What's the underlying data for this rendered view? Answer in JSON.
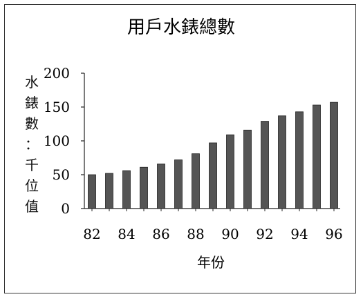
{
  "chart_data": {
    "type": "bar",
    "title": "用戶水錶總數",
    "xlabel": "年份",
    "ylabel": "水錶數：千位值",
    "ylabel_chars": [
      "水",
      "錶",
      "數",
      "：",
      "千",
      "位",
      "值"
    ],
    "categories": [
      "82",
      "83",
      "84",
      "85",
      "86",
      "87",
      "88",
      "89",
      "90",
      "91",
      "92",
      "93",
      "94",
      "95",
      "96"
    ],
    "x_tick_labels": [
      "82",
      "84",
      "86",
      "88",
      "90",
      "92",
      "94",
      "96"
    ],
    "values": [
      50,
      52,
      56,
      61,
      66,
      72,
      81,
      97,
      109,
      116,
      129,
      137,
      143,
      153,
      157
    ],
    "ylim": [
      0,
      200
    ],
    "y_ticks": [
      0,
      50,
      100,
      150,
      200
    ],
    "grid": false,
    "legend": "none",
    "bar_color": "#555555"
  }
}
